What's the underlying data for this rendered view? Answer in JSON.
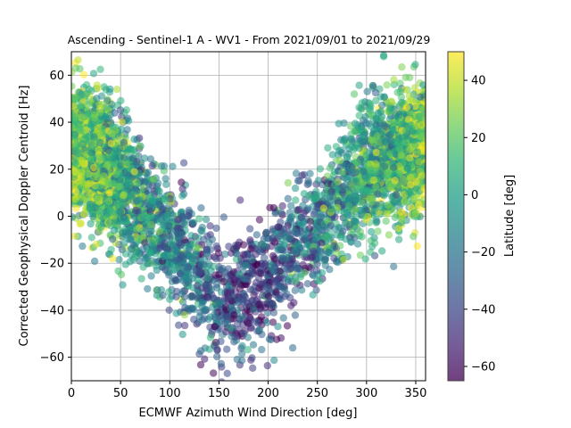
{
  "chart_data": {
    "type": "scatter",
    "title": "Ascending - Sentinel-1 A - WV1 - From 2021/09/01 to 2021/09/29",
    "xlabel": "ECMWF Azimuth Wind Direction [deg]",
    "ylabel": "Corrected Geophysical Doppler Centroid [Hz]",
    "xlim": [
      0,
      360
    ],
    "ylim": [
      -70,
      70
    ],
    "xticks": [
      0,
      50,
      100,
      150,
      200,
      250,
      300,
      350
    ],
    "yticks": [
      -60,
      -40,
      -20,
      0,
      20,
      40,
      60
    ],
    "grid": true,
    "point_alpha": 0.55,
    "colorbar": {
      "label": "Latitude [deg]",
      "range": [
        -65,
        50
      ],
      "ticks": [
        -60,
        -40,
        -20,
        0,
        20,
        40
      ],
      "colormap": "viridis"
    },
    "trend": {
      "description_points": [
        {
          "x": 0,
          "y": 30
        },
        {
          "x": 50,
          "y": 15
        },
        {
          "x": 100,
          "y": -10
        },
        {
          "x": 150,
          "y": -35
        },
        {
          "x": 190,
          "y": -30
        },
        {
          "x": 250,
          "y": -5
        },
        {
          "x": 300,
          "y": 20
        },
        {
          "x": 350,
          "y": 30
        }
      ]
    },
    "point_count": 4800
  }
}
